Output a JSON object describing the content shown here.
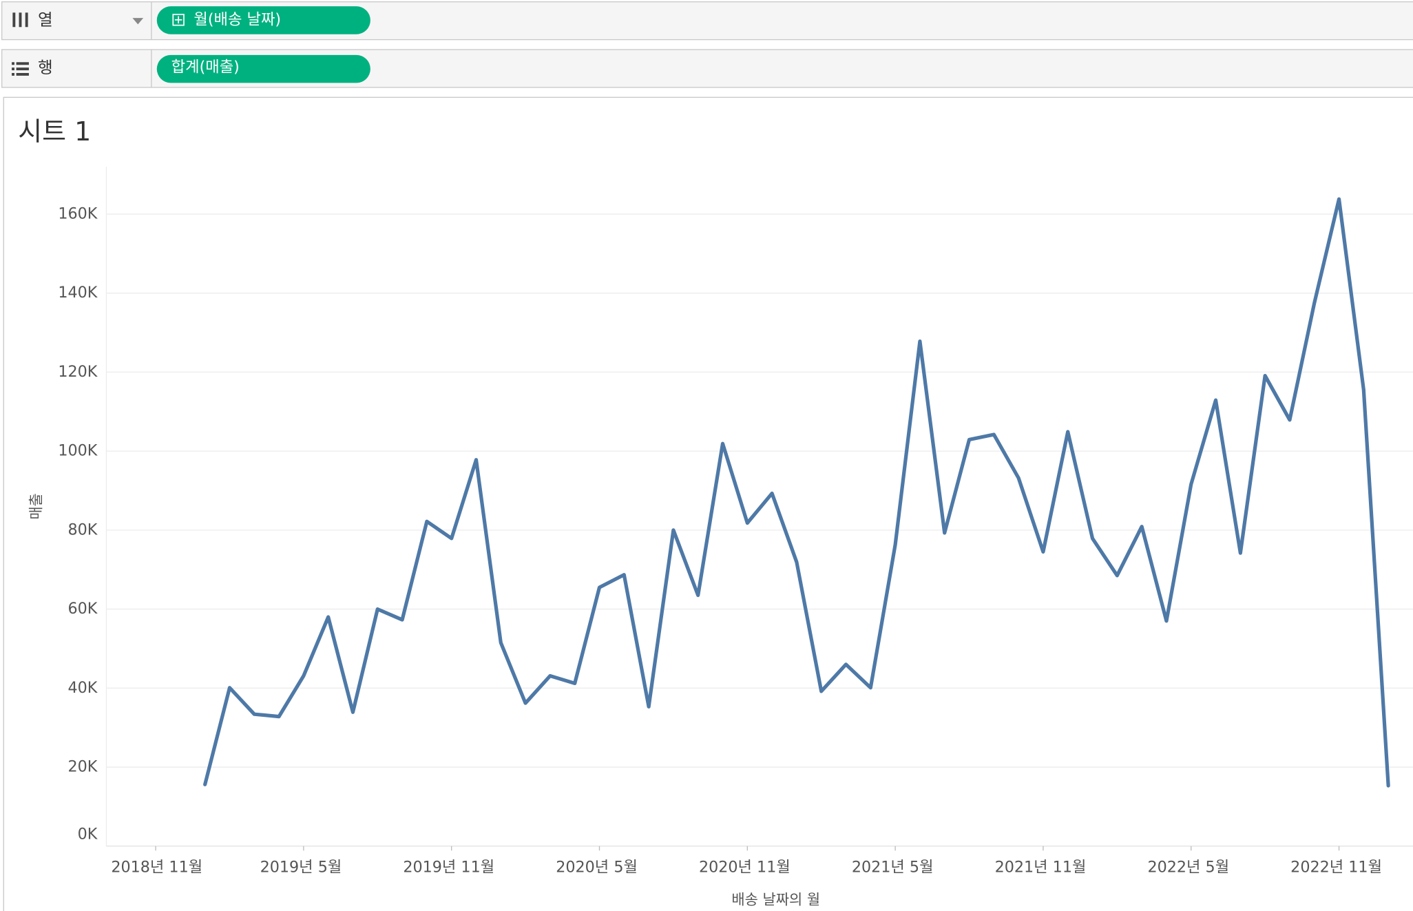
{
  "shelves": {
    "columns": {
      "label": "열",
      "pill": "월(배송 날짜)"
    },
    "rows": {
      "label": "행",
      "pill": "합계(매출)"
    }
  },
  "chart_data": {
    "type": "line",
    "title": "시트 1",
    "x_label": "배송 날짜의 월",
    "y_label": "매출",
    "x": [
      "2019-01",
      "2019-02",
      "2019-03",
      "2019-04",
      "2019-05",
      "2019-06",
      "2019-07",
      "2019-08",
      "2019-09",
      "2019-10",
      "2019-11",
      "2019-12",
      "2020-01",
      "2020-02",
      "2020-03",
      "2020-04",
      "2020-05",
      "2020-06",
      "2020-07",
      "2020-08",
      "2020-09",
      "2020-10",
      "2020-11",
      "2020-12",
      "2021-01",
      "2021-02",
      "2021-03",
      "2021-04",
      "2021-05",
      "2021-06",
      "2021-07",
      "2021-08",
      "2021-09",
      "2021-10",
      "2021-11",
      "2021-12",
      "2022-01",
      "2022-02",
      "2022-03",
      "2022-04",
      "2022-05",
      "2022-06",
      "2022-07",
      "2022-08",
      "2022-09",
      "2022-10",
      "2022-11",
      "2022-12",
      "2023-01"
    ],
    "series": [
      {
        "name": "매출",
        "color": "#4e79a7",
        "values": [
          15600,
          40100,
          33400,
          32800,
          43100,
          58000,
          33900,
          60000,
          57300,
          82200,
          77900,
          97800,
          51500,
          36200,
          43100,
          41200,
          65500,
          68700,
          35300,
          80000,
          63500,
          101900,
          81800,
          89300,
          71900,
          39200,
          46000,
          40100,
          76300,
          127800,
          79300,
          102900,
          104200,
          93200,
          74500,
          104900,
          77900,
          68500,
          80900,
          57000,
          91600,
          112900,
          74200,
          119100,
          107900,
          137500,
          163800,
          115500,
          15300
        ]
      }
    ],
    "xlim": [
      "2018-09",
      "2023-02"
    ],
    "xticks": [
      {
        "value": "2018-11",
        "label": "2018년 11월"
      },
      {
        "value": "2019-05",
        "label": "2019년 5월"
      },
      {
        "value": "2019-11",
        "label": "2019년 11월"
      },
      {
        "value": "2020-05",
        "label": "2020년 5월"
      },
      {
        "value": "2020-11",
        "label": "2020년 11월"
      },
      {
        "value": "2021-05",
        "label": "2021년 5월"
      },
      {
        "value": "2021-11",
        "label": "2021년 11월"
      },
      {
        "value": "2022-05",
        "label": "2022년 5월"
      },
      {
        "value": "2022-11",
        "label": "2022년 11월"
      }
    ],
    "ylim": [
      0,
      172000
    ],
    "yticks": [
      {
        "value": 0,
        "label": "0K"
      },
      {
        "value": 20000,
        "label": "20K"
      },
      {
        "value": 40000,
        "label": "40K"
      },
      {
        "value": 60000,
        "label": "60K"
      },
      {
        "value": 80000,
        "label": "80K"
      },
      {
        "value": 100000,
        "label": "100K"
      },
      {
        "value": 120000,
        "label": "120K"
      },
      {
        "value": 140000,
        "label": "140K"
      },
      {
        "value": 160000,
        "label": "160K"
      }
    ],
    "grid": true
  }
}
